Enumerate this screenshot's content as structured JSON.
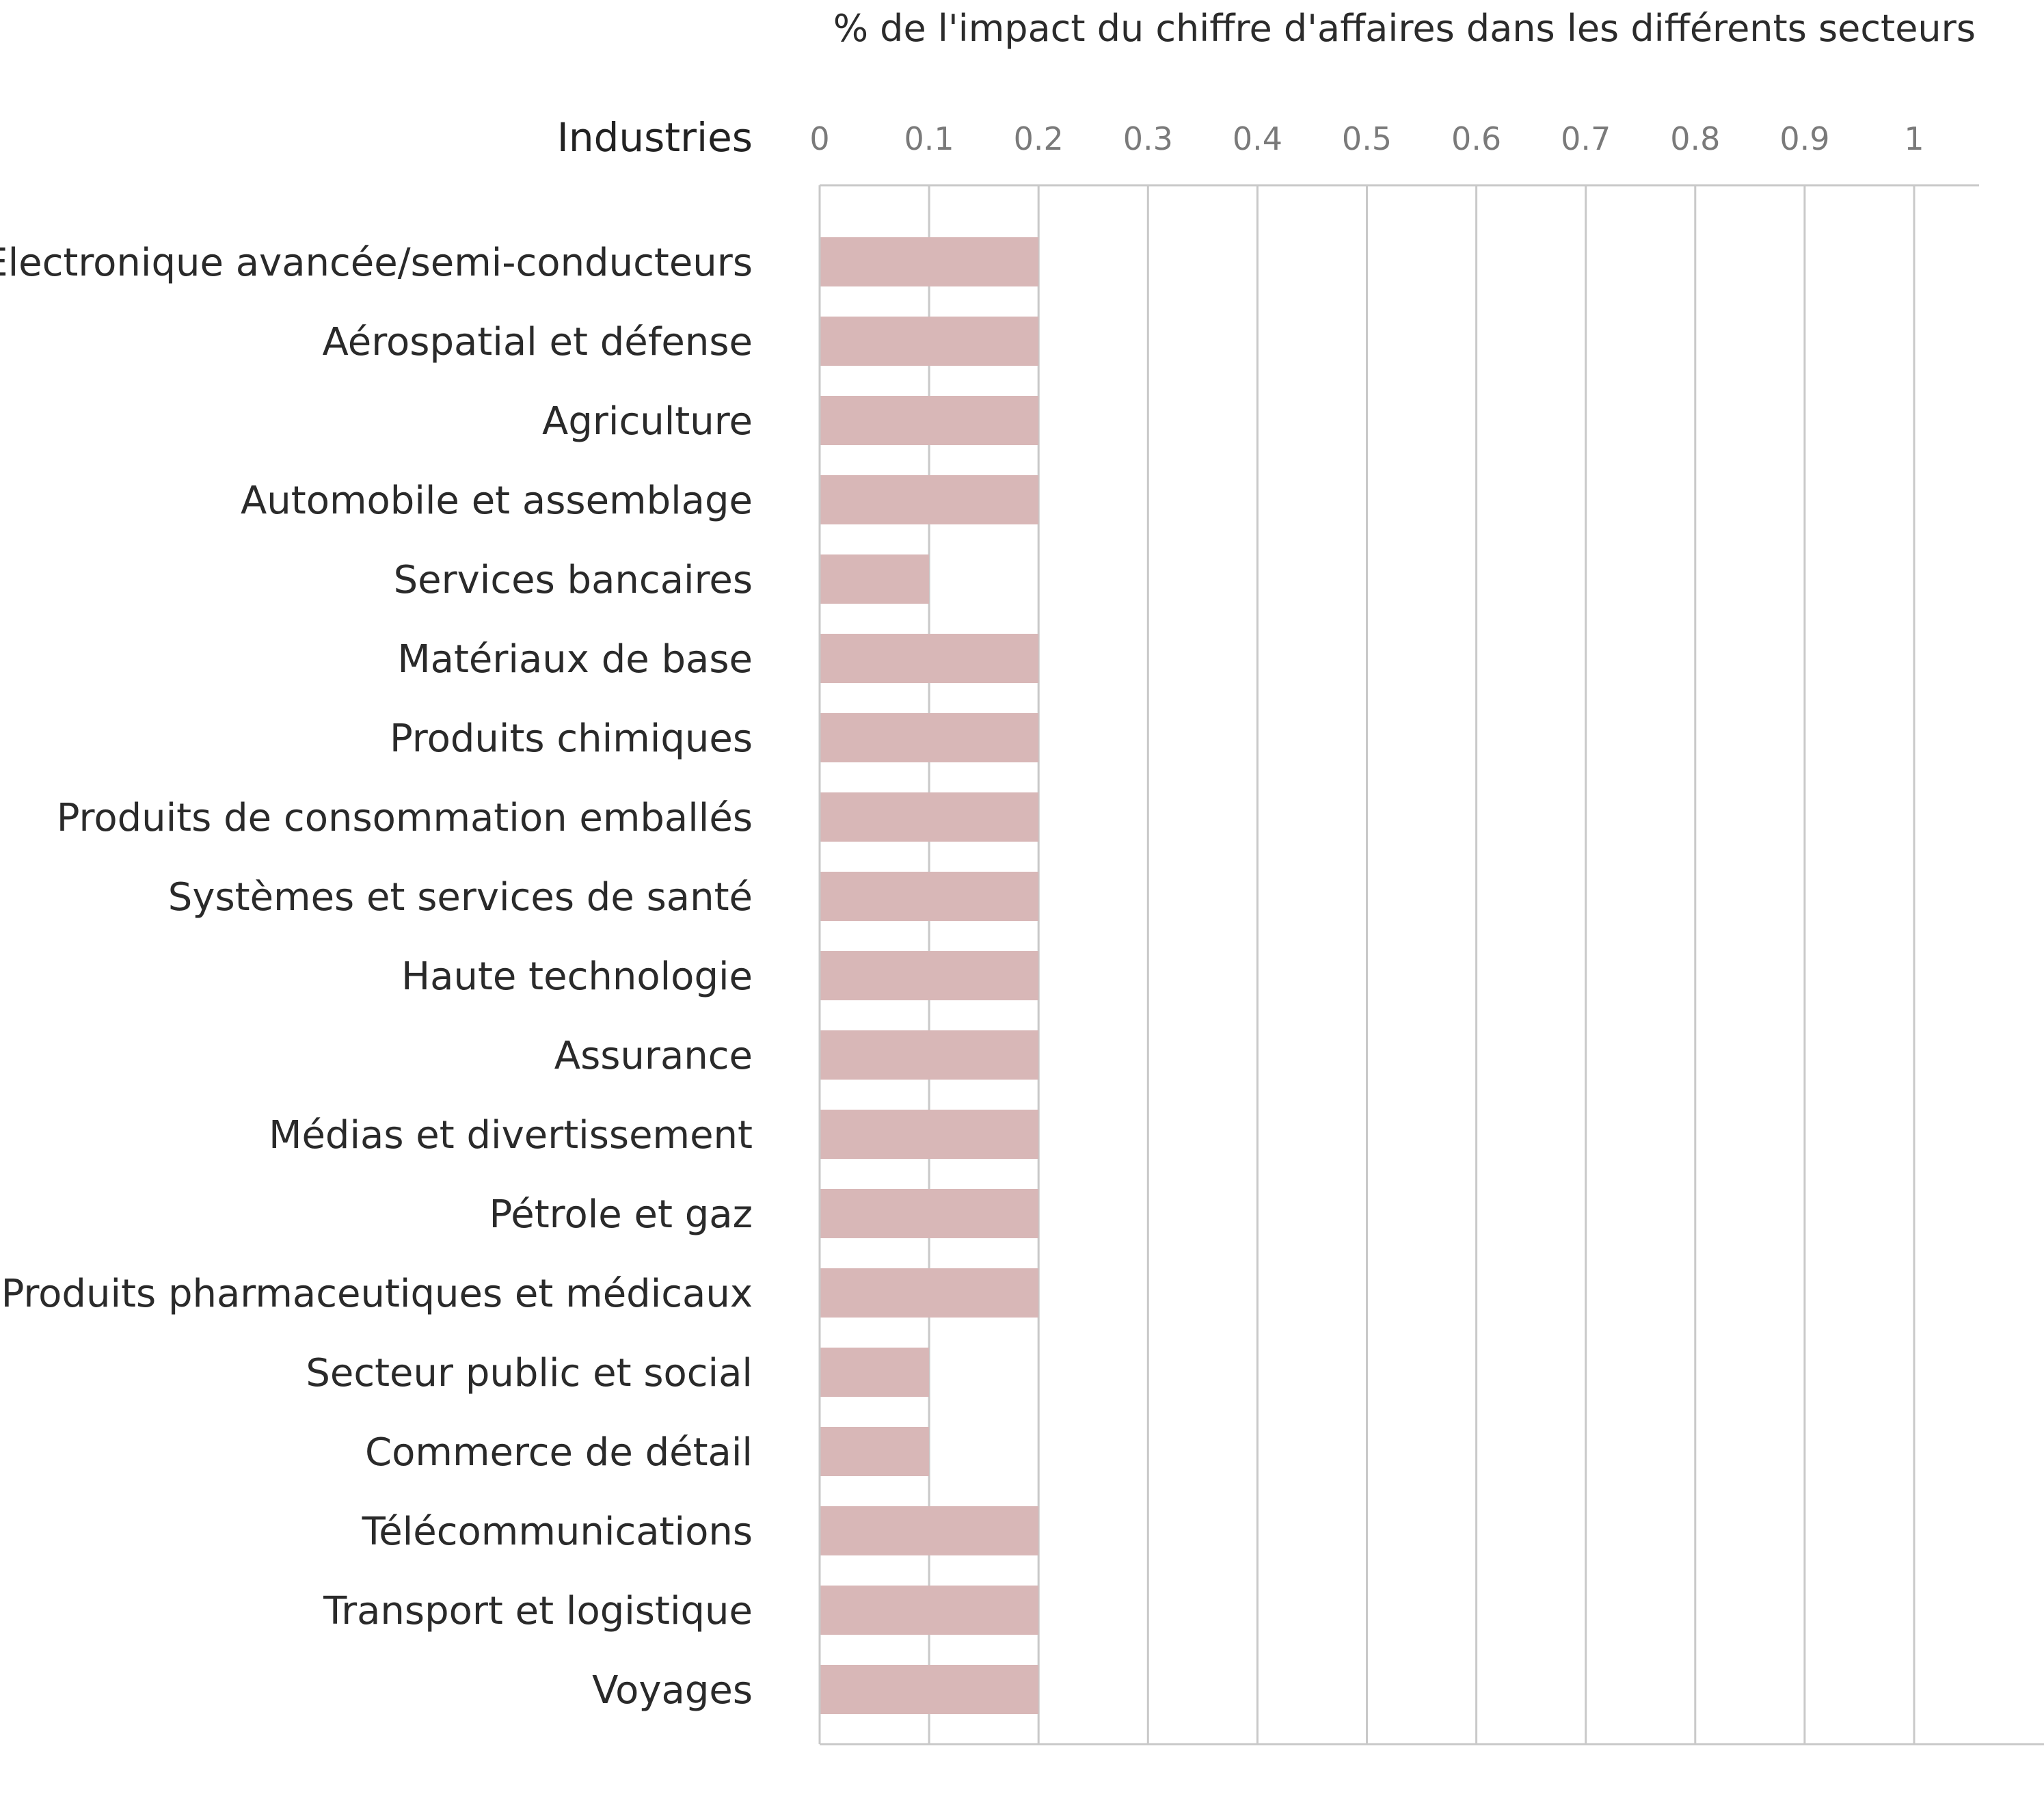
{
  "chart_data": {
    "type": "bar",
    "orientation": "horizontal",
    "title": "% de l'impact du chiffre d'affaires dans les différents secteurs",
    "category_header": "Industries",
    "xlim": [
      0,
      1
    ],
    "x_ticks": [
      0,
      0.1,
      0.2,
      0.3,
      0.4,
      0.5,
      0.6,
      0.7,
      0.8,
      0.9,
      1
    ],
    "x_tick_labels": [
      "0",
      "0.1",
      "0.2",
      "0.3",
      "0.4",
      "0.5",
      "0.6",
      "0.7",
      "0.8",
      "0.9",
      "1"
    ],
    "grid": true,
    "categories": [
      "Electronique avancée/semi-conducteurs",
      "Aérospatial et défense",
      "Agriculture",
      "Automobile et assemblage",
      "Services bancaires",
      "Matériaux de base",
      "Produits chimiques",
      "Produits de consommation emballés",
      "Systèmes et services de santé",
      "Haute technologie",
      "Assurance",
      "Médias et divertissement",
      "Pétrole et gaz",
      "Produits pharmaceutiques et médicaux",
      "Secteur public et social",
      "Commerce de détail",
      "Télécommunications",
      "Transport et logistique",
      "Voyages"
    ],
    "values": [
      0.2,
      0.2,
      0.2,
      0.2,
      0.1,
      0.2,
      0.2,
      0.2,
      0.2,
      0.2,
      0.2,
      0.2,
      0.2,
      0.2,
      0.1,
      0.1,
      0.2,
      0.2,
      0.2
    ],
    "bar_color": "#d8b7b7",
    "grid_color": "#c9c9c9"
  }
}
